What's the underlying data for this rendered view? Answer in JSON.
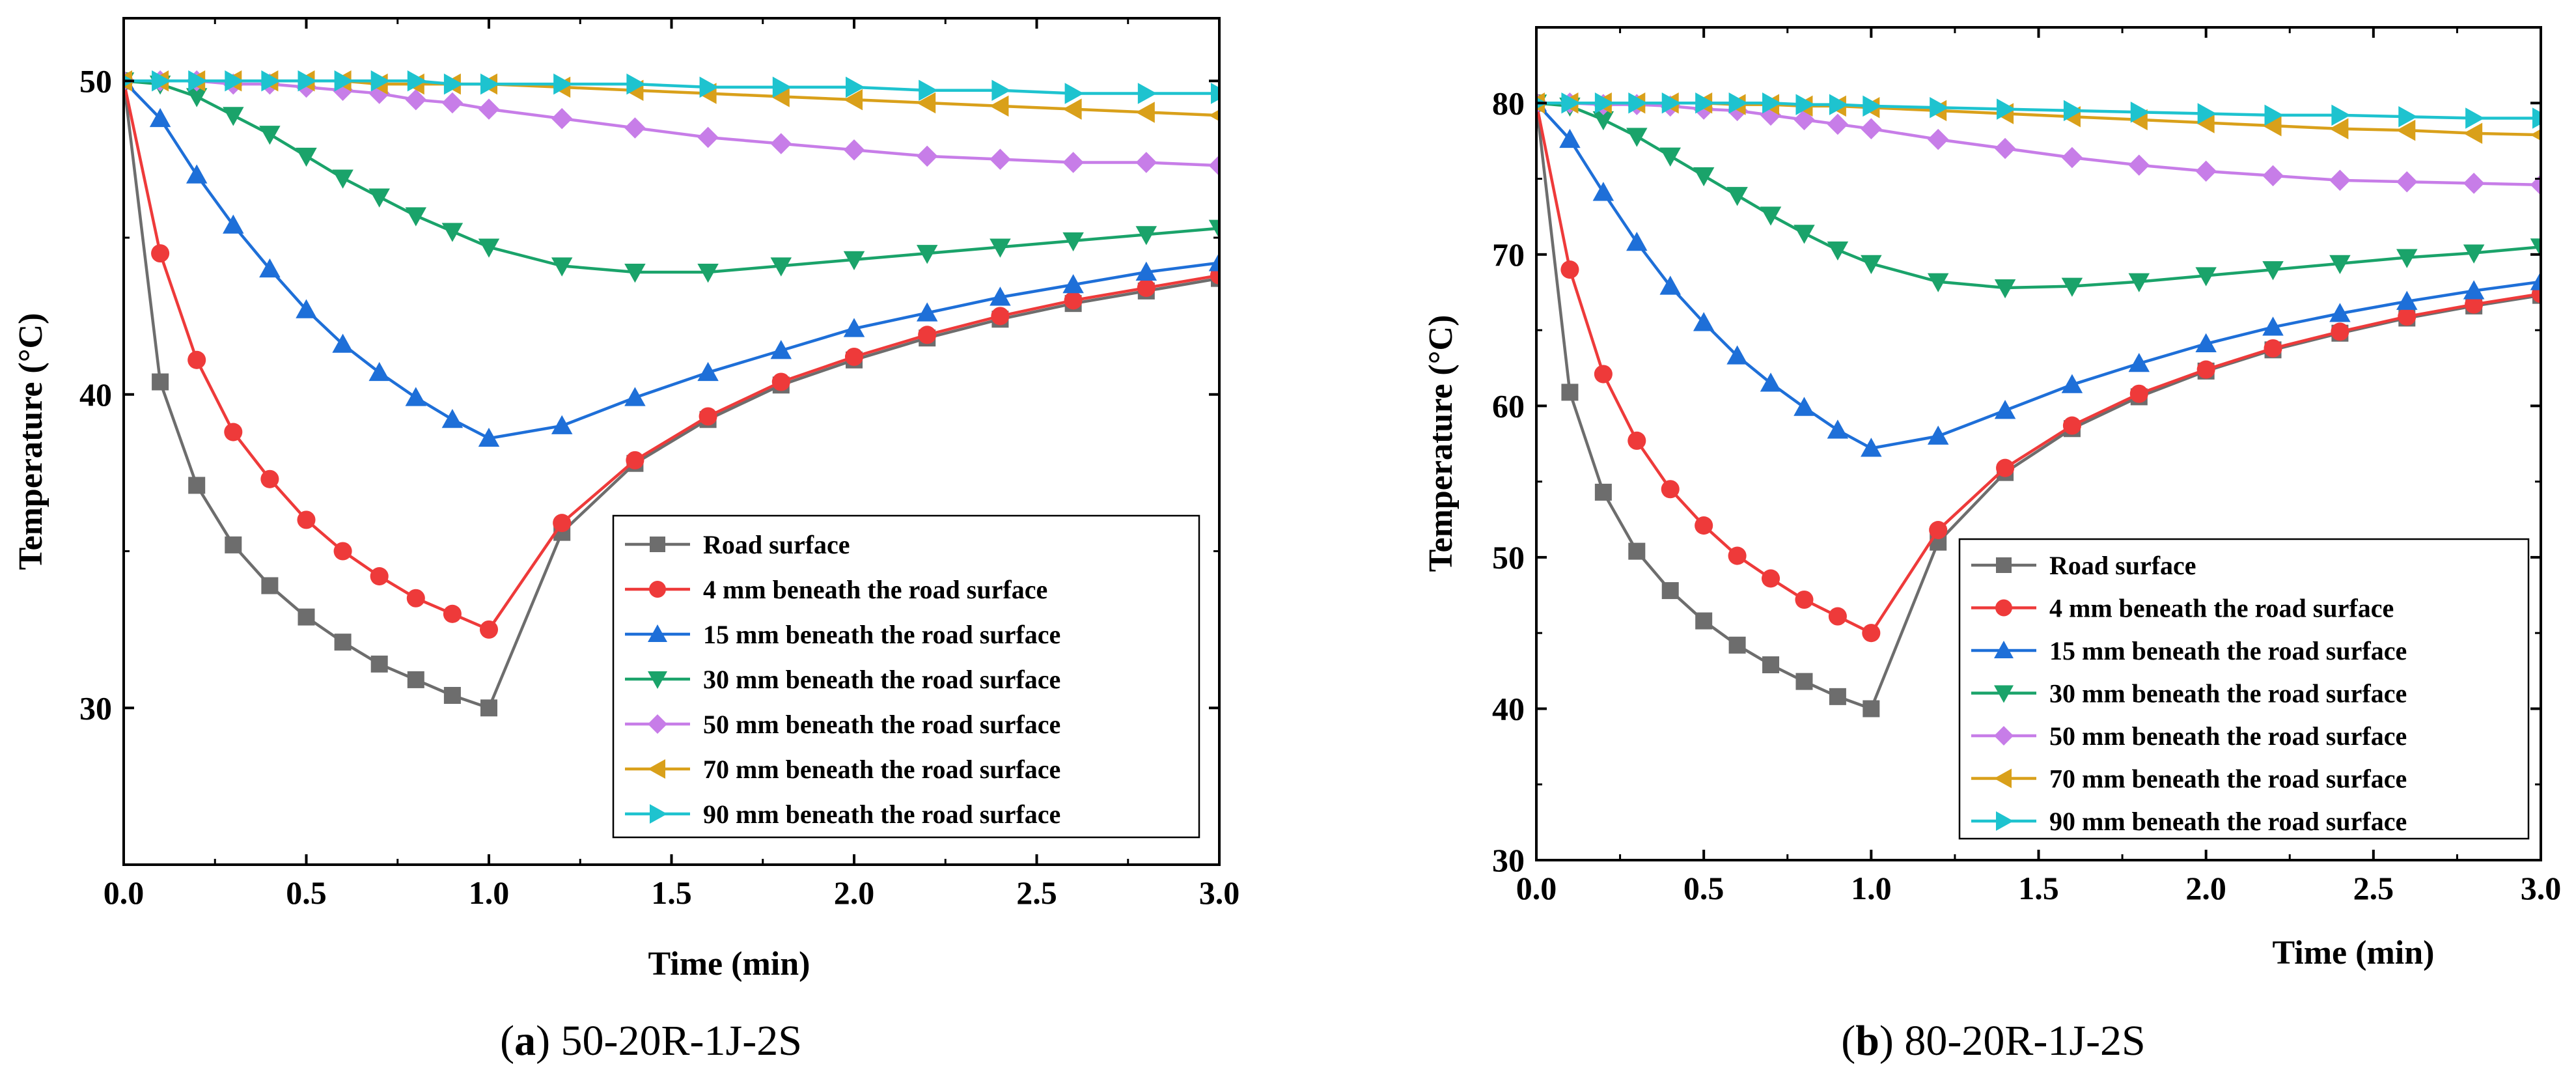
{
  "chart_data": [
    {
      "type": "line",
      "caption_letter": "a",
      "caption_text": "50-20R-1J-2S",
      "xlabel": "Time (min)",
      "ylabel": "Temperature (°C)",
      "xlim": [
        0,
        3
      ],
      "ylim": [
        25,
        52
      ],
      "xticks": [
        "0.0",
        "0.5",
        "1.0",
        "1.5",
        "2.0",
        "2.5",
        "3.0"
      ],
      "xtick_values": [
        0,
        0.5,
        1.0,
        1.5,
        2.0,
        2.5,
        3.0
      ],
      "yticks": [
        "30",
        "40",
        "50"
      ],
      "ytick_values": [
        30,
        40,
        50
      ],
      "legend_position": "lower-right",
      "series": [
        {
          "name": "Road surface",
          "color": "#6d6d6d",
          "marker": "square",
          "x": [
            0,
            0.1,
            0.2,
            0.3,
            0.4,
            0.5,
            0.6,
            0.7,
            0.8,
            0.9,
            1.0,
            1.2,
            1.4,
            1.6,
            1.8,
            2.0,
            2.2,
            2.4,
            2.6,
            2.8,
            3.0
          ],
          "y": [
            50,
            40.4,
            37.1,
            35.2,
            33.9,
            32.9,
            32.1,
            31.4,
            30.9,
            30.4,
            30.0,
            35.6,
            37.8,
            39.2,
            40.3,
            41.1,
            41.8,
            42.4,
            42.9,
            43.3,
            43.7
          ]
        },
        {
          "name": "4 mm beneath the road surface",
          "color": "#ee3a3a",
          "marker": "circle",
          "x": [
            0,
            0.1,
            0.2,
            0.3,
            0.4,
            0.5,
            0.6,
            0.7,
            0.8,
            0.9,
            1.0,
            1.2,
            1.4,
            1.6,
            1.8,
            2.0,
            2.2,
            2.4,
            2.6,
            2.8,
            3.0
          ],
          "y": [
            50,
            44.5,
            41.1,
            38.8,
            37.3,
            36.0,
            35.0,
            34.2,
            33.5,
            33.0,
            32.5,
            35.9,
            37.9,
            39.3,
            40.4,
            41.2,
            41.9,
            42.5,
            43.0,
            43.4,
            43.8
          ]
        },
        {
          "name": "15 mm beneath the road surface",
          "color": "#1e6fd8",
          "marker": "triangle-up",
          "x": [
            0,
            0.1,
            0.2,
            0.3,
            0.4,
            0.5,
            0.6,
            0.7,
            0.8,
            0.9,
            1.0,
            1.2,
            1.4,
            1.6,
            1.8,
            2.0,
            2.2,
            2.4,
            2.6,
            2.8,
            3.0
          ],
          "y": [
            50,
            48.8,
            47.0,
            45.4,
            44.0,
            42.7,
            41.6,
            40.7,
            39.9,
            39.2,
            38.6,
            39.0,
            39.9,
            40.7,
            41.4,
            42.1,
            42.6,
            43.1,
            43.5,
            43.9,
            44.2
          ]
        },
        {
          "name": "30 mm beneath the road surface",
          "color": "#1aa36a",
          "marker": "triangle-down",
          "x": [
            0,
            0.1,
            0.2,
            0.3,
            0.4,
            0.5,
            0.6,
            0.7,
            0.8,
            0.9,
            1.0,
            1.2,
            1.4,
            1.6,
            1.8,
            2.0,
            2.2,
            2.4,
            2.6,
            2.8,
            3.0
          ],
          "y": [
            50,
            49.9,
            49.5,
            48.9,
            48.3,
            47.6,
            46.9,
            46.3,
            45.7,
            45.2,
            44.7,
            44.1,
            43.9,
            43.9,
            44.1,
            44.3,
            44.5,
            44.7,
            44.9,
            45.1,
            45.3
          ]
        },
        {
          "name": "50 mm beneath the road surface",
          "color": "#c77de8",
          "marker": "diamond",
          "x": [
            0,
            0.1,
            0.2,
            0.3,
            0.4,
            0.5,
            0.6,
            0.7,
            0.8,
            0.9,
            1.0,
            1.2,
            1.4,
            1.6,
            1.8,
            2.0,
            2.2,
            2.4,
            2.6,
            2.8,
            3.0
          ],
          "y": [
            50,
            50.0,
            50.0,
            49.9,
            49.9,
            49.8,
            49.7,
            49.6,
            49.4,
            49.3,
            49.1,
            48.8,
            48.5,
            48.2,
            48.0,
            47.8,
            47.6,
            47.5,
            47.4,
            47.4,
            47.3
          ]
        },
        {
          "name": "70 mm beneath the road surface",
          "color": "#d9a01a",
          "marker": "triangle-left",
          "x": [
            0,
            0.1,
            0.2,
            0.3,
            0.4,
            0.5,
            0.6,
            0.7,
            0.8,
            0.9,
            1.0,
            1.2,
            1.4,
            1.6,
            1.8,
            2.0,
            2.2,
            2.4,
            2.6,
            2.8,
            3.0
          ],
          "y": [
            50,
            50.0,
            50.0,
            50.0,
            50.0,
            50.0,
            50.0,
            49.9,
            49.9,
            49.9,
            49.9,
            49.8,
            49.7,
            49.6,
            49.5,
            49.4,
            49.3,
            49.2,
            49.1,
            49.0,
            48.9
          ]
        },
        {
          "name": "90 mm beneath the road surface",
          "color": "#1ec3cf",
          "marker": "triangle-right",
          "x": [
            0,
            0.1,
            0.2,
            0.3,
            0.4,
            0.5,
            0.6,
            0.7,
            0.8,
            0.9,
            1.0,
            1.2,
            1.4,
            1.6,
            1.8,
            2.0,
            2.2,
            2.4,
            2.6,
            2.8,
            3.0
          ],
          "y": [
            50,
            50.0,
            50.0,
            50.0,
            50.0,
            50.0,
            50.0,
            50.0,
            50.0,
            49.9,
            49.9,
            49.9,
            49.9,
            49.8,
            49.8,
            49.8,
            49.7,
            49.7,
            49.6,
            49.6,
            49.6
          ]
        }
      ]
    },
    {
      "type": "line",
      "caption_letter": "b",
      "caption_text": "80-20R-1J-2S",
      "xlabel": "Time (min)",
      "ylabel": "Temperature (°C)",
      "xlim": [
        0,
        3
      ],
      "ylim": [
        30,
        85
      ],
      "xticks": [
        "0.0",
        "0.5",
        "1.0",
        "1.5",
        "2.0",
        "2.5",
        "3.0"
      ],
      "xtick_values": [
        0,
        0.5,
        1.0,
        1.5,
        2.0,
        2.5,
        3.0
      ],
      "yticks": [
        "30",
        "40",
        "50",
        "60",
        "70",
        "80"
      ],
      "ytick_values": [
        30,
        40,
        50,
        60,
        70,
        80
      ],
      "legend_position": "lower-right",
      "series": [
        {
          "name": "Road surface",
          "color": "#6d6d6d",
          "marker": "square",
          "x": [
            0,
            0.1,
            0.2,
            0.3,
            0.4,
            0.5,
            0.6,
            0.7,
            0.8,
            0.9,
            1.0,
            1.2,
            1.4,
            1.6,
            1.8,
            2.0,
            2.2,
            2.4,
            2.6,
            2.8,
            3.0
          ],
          "y": [
            80,
            60.9,
            54.3,
            50.4,
            47.8,
            45.8,
            44.2,
            42.9,
            41.8,
            40.8,
            40.0,
            51.0,
            55.6,
            58.5,
            60.6,
            62.3,
            63.7,
            64.8,
            65.8,
            66.6,
            67.3
          ]
        },
        {
          "name": "4 mm beneath the road surface",
          "color": "#ee3a3a",
          "marker": "circle",
          "x": [
            0,
            0.1,
            0.2,
            0.3,
            0.4,
            0.5,
            0.6,
            0.7,
            0.8,
            0.9,
            1.0,
            1.2,
            1.4,
            1.6,
            1.8,
            2.0,
            2.2,
            2.4,
            2.6,
            2.8,
            3.0
          ],
          "y": [
            80,
            69.0,
            62.1,
            57.7,
            54.5,
            52.1,
            50.1,
            48.6,
            47.2,
            46.1,
            45.0,
            51.8,
            55.9,
            58.7,
            60.8,
            62.4,
            63.8,
            64.9,
            65.9,
            66.7,
            67.4
          ]
        },
        {
          "name": "15 mm beneath the road surface",
          "color": "#1e6fd8",
          "marker": "triangle-up",
          "x": [
            0,
            0.1,
            0.2,
            0.3,
            0.4,
            0.5,
            0.6,
            0.7,
            0.8,
            0.9,
            1.0,
            1.2,
            1.4,
            1.6,
            1.8,
            2.0,
            2.2,
            2.4,
            2.6,
            2.8,
            3.0
          ],
          "y": [
            80,
            77.6,
            74.1,
            70.8,
            67.9,
            65.5,
            63.3,
            61.5,
            59.9,
            58.4,
            57.2,
            58.0,
            59.7,
            61.4,
            62.8,
            64.1,
            65.2,
            66.1,
            66.9,
            67.6,
            68.2
          ]
        },
        {
          "name": "30 mm beneath the road surface",
          "color": "#1aa36a",
          "marker": "triangle-down",
          "x": [
            0,
            0.1,
            0.2,
            0.3,
            0.4,
            0.5,
            0.6,
            0.7,
            0.8,
            0.9,
            1.0,
            1.2,
            1.4,
            1.6,
            1.8,
            2.0,
            2.2,
            2.4,
            2.6,
            2.8,
            3.0
          ],
          "y": [
            80,
            79.8,
            78.9,
            77.8,
            76.5,
            75.2,
            73.9,
            72.6,
            71.4,
            70.3,
            69.4,
            68.2,
            67.8,
            67.9,
            68.2,
            68.6,
            69.0,
            69.4,
            69.8,
            70.1,
            70.5
          ]
        },
        {
          "name": "50 mm beneath the road surface",
          "color": "#c77de8",
          "marker": "diamond",
          "x": [
            0,
            0.1,
            0.2,
            0.3,
            0.4,
            0.5,
            0.6,
            0.7,
            0.8,
            0.9,
            1.0,
            1.2,
            1.4,
            1.6,
            1.8,
            2.0,
            2.2,
            2.4,
            2.6,
            2.8,
            3.0
          ],
          "y": [
            80,
            80.0,
            79.9,
            79.9,
            79.8,
            79.6,
            79.5,
            79.2,
            78.9,
            78.6,
            78.3,
            77.6,
            77.0,
            76.4,
            75.9,
            75.5,
            75.2,
            74.9,
            74.8,
            74.7,
            74.6
          ]
        },
        {
          "name": "70 mm beneath the road surface",
          "color": "#d9a01a",
          "marker": "triangle-left",
          "x": [
            0,
            0.1,
            0.2,
            0.3,
            0.4,
            0.5,
            0.6,
            0.7,
            0.8,
            0.9,
            1.0,
            1.2,
            1.4,
            1.6,
            1.8,
            2.0,
            2.2,
            2.4,
            2.6,
            2.8,
            3.0
          ],
          "y": [
            80,
            80.0,
            80.0,
            80.0,
            80.0,
            80.0,
            79.9,
            79.9,
            79.8,
            79.8,
            79.7,
            79.5,
            79.3,
            79.1,
            78.9,
            78.7,
            78.5,
            78.3,
            78.2,
            78.0,
            77.9
          ]
        },
        {
          "name": "90 mm beneath the road surface",
          "color": "#1ec3cf",
          "marker": "triangle-right",
          "x": [
            0,
            0.1,
            0.2,
            0.3,
            0.4,
            0.5,
            0.6,
            0.7,
            0.8,
            0.9,
            1.0,
            1.2,
            1.4,
            1.6,
            1.8,
            2.0,
            2.2,
            2.4,
            2.6,
            2.8,
            3.0
          ],
          "y": [
            80,
            80.0,
            80.0,
            80.0,
            80.0,
            80.0,
            80.0,
            80.0,
            79.9,
            79.9,
            79.8,
            79.7,
            79.6,
            79.5,
            79.4,
            79.3,
            79.2,
            79.2,
            79.1,
            79.0,
            79.0
          ]
        }
      ]
    }
  ]
}
